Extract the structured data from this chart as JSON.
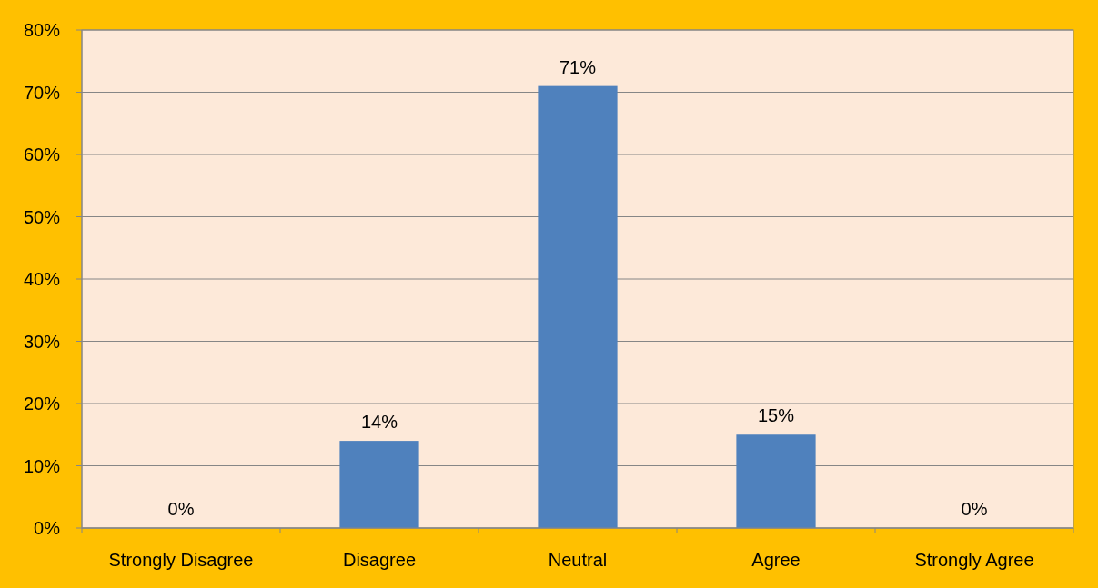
{
  "chart_data": {
    "type": "bar",
    "categories": [
      "Strongly Disagree",
      "Disagree",
      "Neutral",
      "Agree",
      "Strongly Agree"
    ],
    "values": [
      0,
      14,
      71,
      15,
      0
    ],
    "value_labels": [
      "0%",
      "14%",
      "71%",
      "15%",
      "0%"
    ],
    "color": "#4f81bd",
    "ylim": [
      0,
      80
    ],
    "yticks": [
      {
        "value": 0,
        "label": "0%"
      },
      {
        "value": 10,
        "label": "10%"
      },
      {
        "value": 20,
        "label": "20%"
      },
      {
        "value": 30,
        "label": "30%"
      },
      {
        "value": 40,
        "label": "40%"
      },
      {
        "value": 50,
        "label": "50%"
      },
      {
        "value": 60,
        "label": "60%"
      },
      {
        "value": 70,
        "label": "70%"
      },
      {
        "value": 80,
        "label": "80%"
      }
    ],
    "grid": "y"
  }
}
